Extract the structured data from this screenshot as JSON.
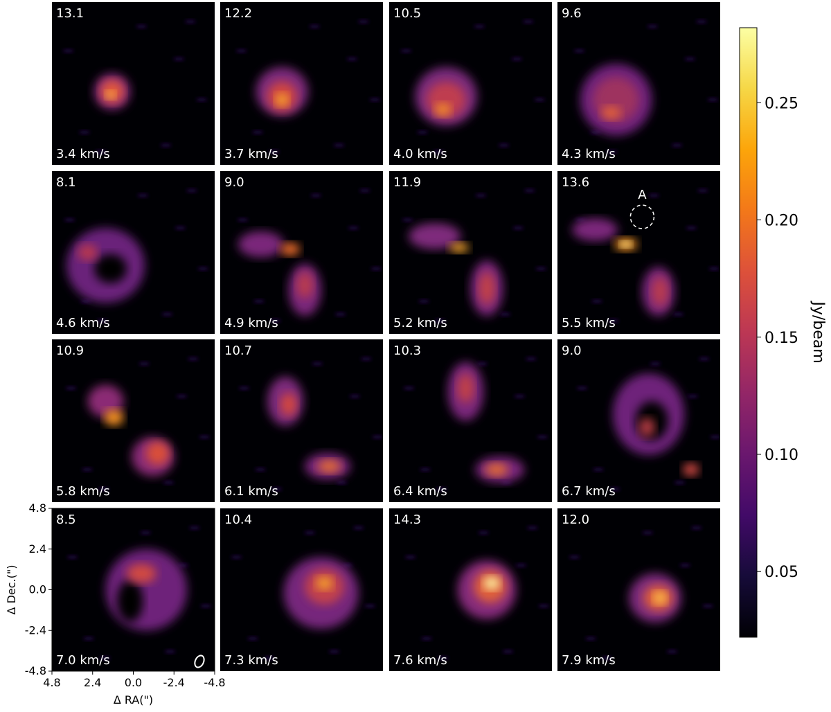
{
  "chart_data": {
    "type": "heatmap",
    "description_kind": "channel maps",
    "colormap": "inferno",
    "colorbar": {
      "label": "Jy/beam",
      "range": [
        0.022,
        0.282
      ],
      "ticks": [
        {
          "value": 0.05,
          "label": "0.05"
        },
        {
          "value": 0.1,
          "label": "0.10"
        },
        {
          "value": 0.15,
          "label": "0.15"
        },
        {
          "value": 0.2,
          "label": "0.20"
        },
        {
          "value": 0.25,
          "label": "0.25"
        }
      ]
    },
    "xlabel": "Δ RA(\")",
    "ylabel": "Δ Dec.(\")",
    "xlim": [
      4.8,
      -4.8
    ],
    "ylim": [
      -4.8,
      4.8
    ],
    "xticks": [
      "4.8",
      "2.4",
      "0.0",
      "-2.4",
      "-4.8"
    ],
    "yticks": [
      "4.8",
      "2.4",
      "0.0",
      "-2.4",
      "-4.8"
    ],
    "annotation": {
      "panel_index": 7,
      "label": "A",
      "x": -0.2,
      "y": 2.1
    },
    "panels": [
      {
        "peak": "13.1",
        "velocity": "3.4 km/s"
      },
      {
        "peak": "12.2",
        "velocity": "3.7 km/s"
      },
      {
        "peak": "10.5",
        "velocity": "4.0 km/s"
      },
      {
        "peak": "9.6",
        "velocity": "4.3 km/s"
      },
      {
        "peak": "8.1",
        "velocity": "4.6 km/s"
      },
      {
        "peak": "9.0",
        "velocity": "4.9 km/s"
      },
      {
        "peak": "11.9",
        "velocity": "5.2 km/s"
      },
      {
        "peak": "13.6",
        "velocity": "5.5 km/s"
      },
      {
        "peak": "10.9",
        "velocity": "5.8 km/s"
      },
      {
        "peak": "10.7",
        "velocity": "6.1 km/s"
      },
      {
        "peak": "10.3",
        "velocity": "6.4 km/s"
      },
      {
        "peak": "9.0",
        "velocity": "6.7 km/s"
      },
      {
        "peak": "8.5",
        "velocity": "7.0 km/s"
      },
      {
        "peak": "10.4",
        "velocity": "7.3 km/s"
      },
      {
        "peak": "14.3",
        "velocity": "7.6 km/s"
      },
      {
        "peak": "12.0",
        "velocity": "7.9 km/s"
      }
    ]
  }
}
